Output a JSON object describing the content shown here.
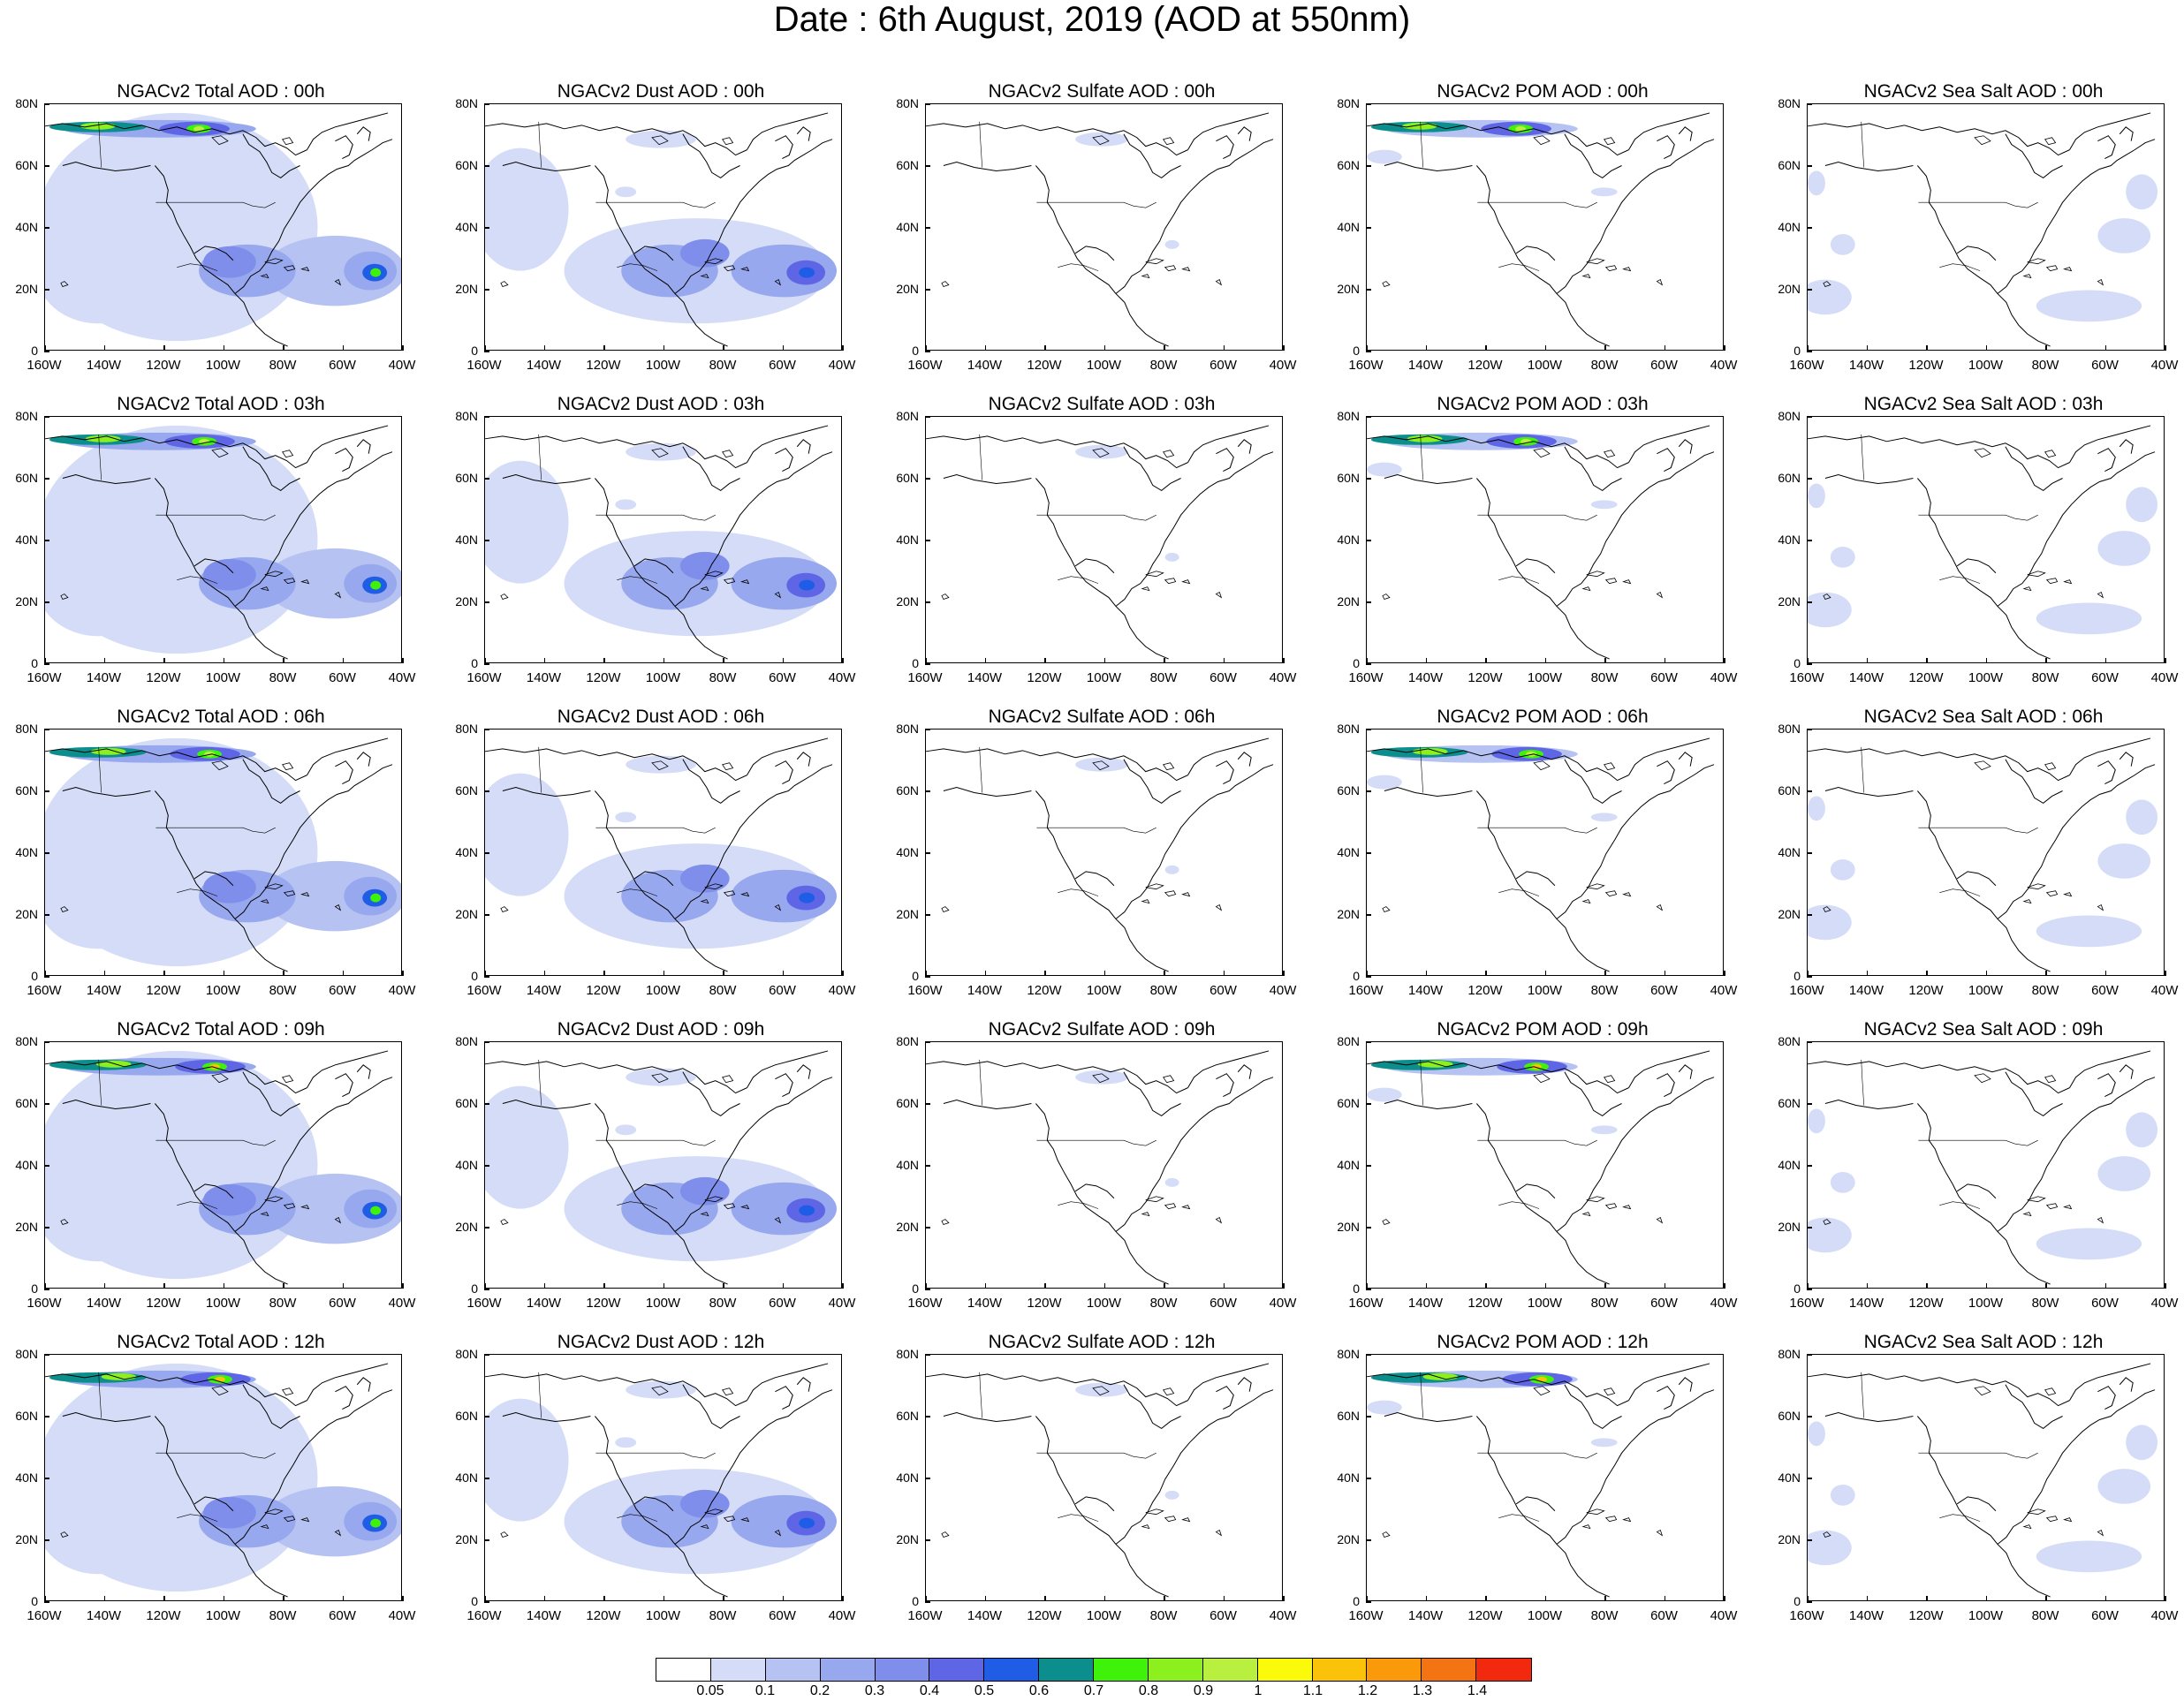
{
  "title": "Date : 6th August, 2019 (AOD at 550nm)",
  "y_axis_ticks": [
    "80N",
    "60N",
    "40N",
    "20N",
    "0"
  ],
  "x_axis_ticks": [
    "160W",
    "140W",
    "120W",
    "100W",
    "80W",
    "60W",
    "40W"
  ],
  "colorbar": {
    "labels": [
      "0.05",
      "0.1",
      "0.2",
      "0.3",
      "0.4",
      "0.5",
      "0.6",
      "0.7",
      "0.8",
      "0.9",
      "1",
      "1.1",
      "1.2",
      "1.3",
      "1.4"
    ],
    "colors": [
      "#ffffff",
      "#d4dcf7",
      "#b5c2f2",
      "#98a8ee",
      "#7f8eea",
      "#5f66e6",
      "#1f5de6",
      "#0c8f8c",
      "#3ef20a",
      "#8cf01e",
      "#b9ef3f",
      "#fafa0a",
      "#fac30a",
      "#fa9a0a",
      "#f47312",
      "#f2290e"
    ]
  },
  "panels": [
    {
      "title": "NGACv2 Total AOD : 00h",
      "kind": "total",
      "hour": "00h"
    },
    {
      "title": "NGACv2 Dust AOD : 00h",
      "kind": "dust",
      "hour": "00h"
    },
    {
      "title": "NGACv2 Sulfate AOD : 00h",
      "kind": "sulfate",
      "hour": "00h"
    },
    {
      "title": "NGACv2 POM AOD : 00h",
      "kind": "pom",
      "hour": "00h"
    },
    {
      "title": "NGACv2 Sea Salt AOD : 00h",
      "kind": "seasalt",
      "hour": "00h"
    },
    {
      "title": "NGACv2 Total AOD : 03h",
      "kind": "total",
      "hour": "03h"
    },
    {
      "title": "NGACv2 Dust AOD : 03h",
      "kind": "dust",
      "hour": "03h"
    },
    {
      "title": "NGACv2 Sulfate AOD : 03h",
      "kind": "sulfate",
      "hour": "03h"
    },
    {
      "title": "NGACv2 POM AOD : 03h",
      "kind": "pom",
      "hour": "03h"
    },
    {
      "title": "NGACv2 Sea Salt AOD : 03h",
      "kind": "seasalt",
      "hour": "03h"
    },
    {
      "title": "NGACv2 Total AOD : 06h",
      "kind": "total",
      "hour": "06h"
    },
    {
      "title": "NGACv2 Dust AOD : 06h",
      "kind": "dust",
      "hour": "06h"
    },
    {
      "title": "NGACv2 Sulfate AOD : 06h",
      "kind": "sulfate",
      "hour": "06h"
    },
    {
      "title": "NGACv2 POM AOD : 06h",
      "kind": "pom",
      "hour": "06h"
    },
    {
      "title": "NGACv2 Sea Salt AOD : 06h",
      "kind": "seasalt",
      "hour": "06h"
    },
    {
      "title": "NGACv2 Total AOD : 09h",
      "kind": "total",
      "hour": "09h"
    },
    {
      "title": "NGACv2 Dust AOD : 09h",
      "kind": "dust",
      "hour": "09h"
    },
    {
      "title": "NGACv2 Sulfate AOD : 09h",
      "kind": "sulfate",
      "hour": "09h"
    },
    {
      "title": "NGACv2 POM AOD : 09h",
      "kind": "pom",
      "hour": "09h"
    },
    {
      "title": "NGACv2 Sea Salt  AOD : 09h",
      "kind": "seasalt",
      "hour": "09h"
    },
    {
      "title": "NGACv2 Total AOD  : 12h",
      "kind": "total",
      "hour": "12h"
    },
    {
      "title": "NGACv2 Dust AOD : 12h",
      "kind": "dust",
      "hour": "12h"
    },
    {
      "title": "NGACv2 Sulfate AOD : 12h",
      "kind": "sulfate",
      "hour": "12h"
    },
    {
      "title": "NGACv2 POM  AOD : 12h",
      "kind": "pom",
      "hour": "12h"
    },
    {
      "title": "NGACv2 Sea Salt  AOD : 12h",
      "kind": "seasalt",
      "hour": "12h"
    }
  ]
}
